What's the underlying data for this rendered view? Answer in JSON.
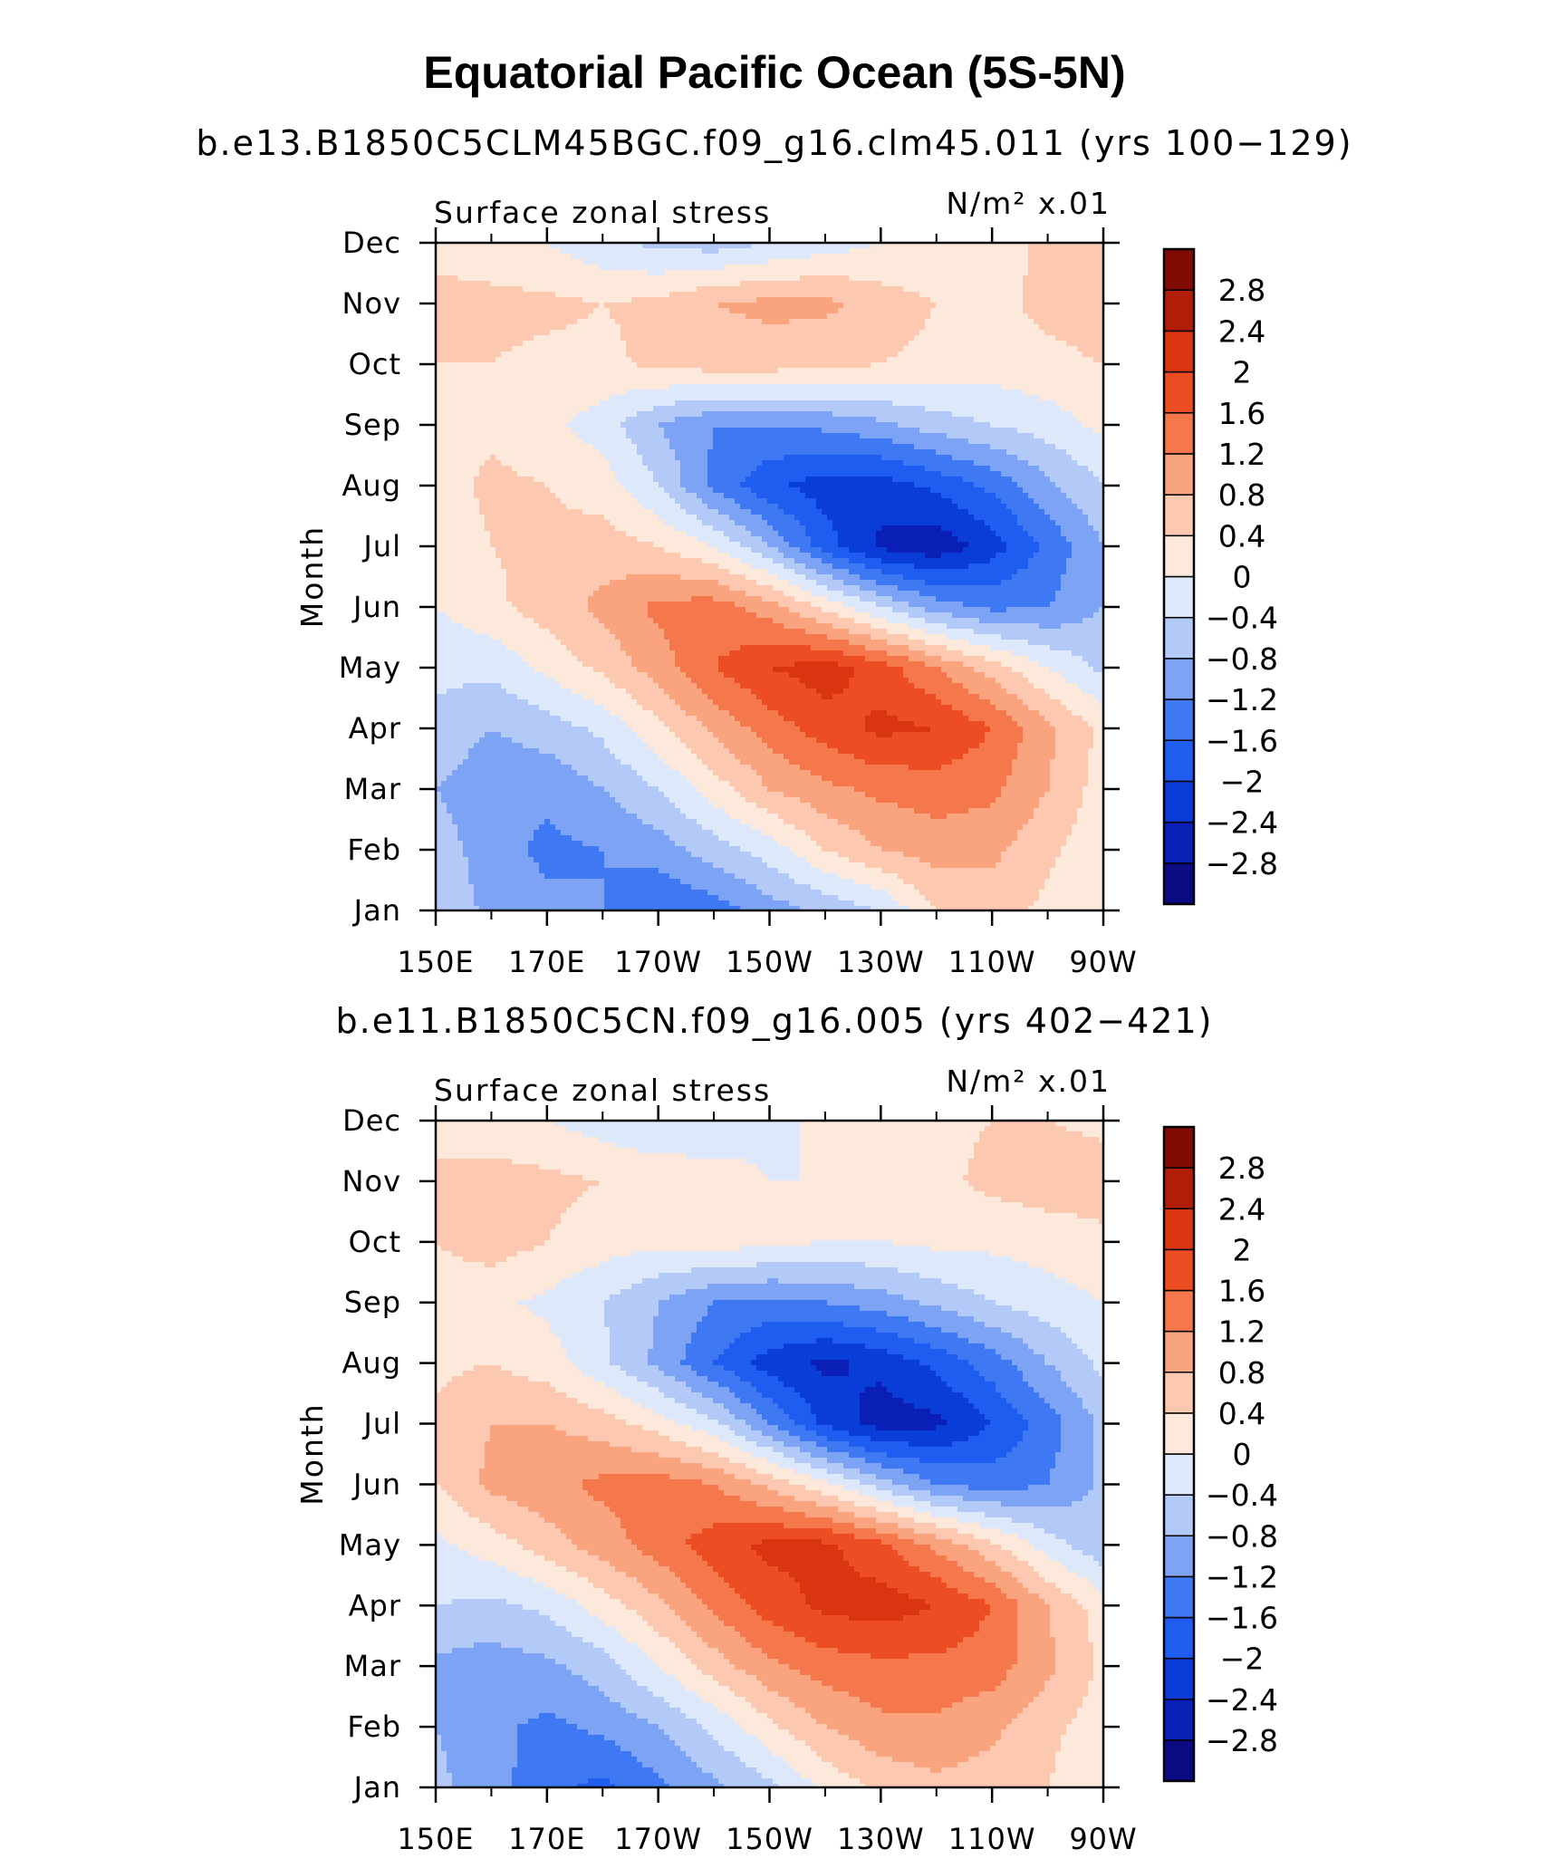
{
  "figure": {
    "title": "Equatorial Pacific Ocean (5S-5N)"
  },
  "palette": {
    "levels": [
      -2.8,
      -2.4,
      -2,
      -1.6,
      -1.2,
      -0.8,
      -0.4,
      0,
      0.4,
      0.8,
      1.2,
      1.6,
      2,
      2.4,
      2.8
    ],
    "level_labels": [
      "-2.8",
      "-2.4",
      "-2",
      "-1.6",
      "-1.2",
      "-0.8",
      "-0.4",
      "0",
      "0.4",
      "0.8",
      "1.2",
      "1.6",
      "2",
      "2.4",
      "2.8"
    ],
    "colors": [
      "#0b0b84",
      "#0a1fb6",
      "#0a3cd8",
      "#1f5cf0",
      "#3f78f3",
      "#7da3f5",
      "#b3c9f8",
      "#dde9fb",
      "#fde9dc",
      "#fcc9b0",
      "#f9a47f",
      "#f4784b",
      "#ec4d22",
      "#d83510",
      "#b01e08",
      "#800b05"
    ]
  },
  "chart_data": [
    {
      "type": "heatmap",
      "title": "b.e13.B1850C5CLM45BGC.f09_g16.clm45.011 (yrs 100−129)",
      "variable_label": "Surface zonal stress",
      "units_label": "N/m² x.01",
      "xlabel": "",
      "ylabel": "Month",
      "x_ticks": [
        "150E",
        "170E",
        "170W",
        "150W",
        "130W",
        "110W",
        "90W"
      ],
      "x_range_deg_east": [
        150,
        270
      ],
      "y_ticks": [
        "Jan",
        "Feb",
        "Mar",
        "Apr",
        "May",
        "Jun",
        "Jul",
        "Aug",
        "Sep",
        "Oct",
        "Nov",
        "Dec"
      ],
      "x_deg_east": [
        150,
        160,
        170,
        180,
        190,
        200,
        210,
        220,
        230,
        240,
        250,
        260,
        270
      ],
      "values_by_month": [
        [
          -0.5,
          -0.9,
          -1.1,
          -1.2,
          -1.6,
          -1.4,
          -1.0,
          -0.7,
          -0.4,
          0.4,
          0.6,
          0.3,
          0.0
        ],
        [
          -0.6,
          -1.0,
          -1.3,
          -1.2,
          -1.0,
          -0.6,
          -0.2,
          0.4,
          0.8,
          1.0,
          0.9,
          0.5,
          0.1
        ],
        [
          -0.8,
          -1.1,
          -1.1,
          -0.8,
          -0.4,
          0.2,
          0.8,
          1.1,
          1.3,
          1.4,
          1.3,
          0.8,
          0.2
        ],
        [
          -0.5,
          -0.8,
          -0.6,
          -0.3,
          0.3,
          0.9,
          1.4,
          1.8,
          2.1,
          2.0,
          1.6,
          0.9,
          0.3
        ],
        [
          -0.3,
          -0.3,
          0.1,
          0.5,
          1.0,
          1.6,
          2.0,
          2.2,
          1.8,
          1.2,
          0.6,
          0.0,
          -0.5
        ],
        [
          0.0,
          0.3,
          0.6,
          0.9,
          1.3,
          1.4,
          1.0,
          0.3,
          -0.4,
          -1.0,
          -1.3,
          -1.2,
          -0.8
        ],
        [
          0.1,
          0.4,
          0.5,
          0.6,
          0.4,
          0.0,
          -0.8,
          -1.8,
          -2.5,
          -2.7,
          -2.2,
          -1.5,
          -0.8
        ],
        [
          0.2,
          0.5,
          0.4,
          0.2,
          -0.4,
          -1.3,
          -1.9,
          -2.2,
          -2.2,
          -1.9,
          -1.5,
          -0.9,
          -0.4
        ],
        [
          0.3,
          0.3,
          0.1,
          -0.2,
          -0.8,
          -1.2,
          -1.2,
          -1.1,
          -0.9,
          -0.6,
          -0.4,
          -0.2,
          0.1
        ],
        [
          0.4,
          0.4,
          0.3,
          0.3,
          0.5,
          0.6,
          0.6,
          0.5,
          0.4,
          0.3,
          0.2,
          0.3,
          0.4
        ],
        [
          0.5,
          0.5,
          0.5,
          0.4,
          0.5,
          0.8,
          0.9,
          0.9,
          0.6,
          0.4,
          0.3,
          0.5,
          0.6
        ],
        [
          0.3,
          0.2,
          0.0,
          -0.3,
          -0.5,
          -0.6,
          -0.4,
          -0.2,
          0.0,
          0.1,
          0.2,
          0.5,
          0.6
        ]
      ]
    },
    {
      "type": "heatmap",
      "title": "b.e11.B1850C5CN.f09_g16.005 (yrs 402−421)",
      "variable_label": "Surface zonal stress",
      "units_label": "N/m² x.01",
      "xlabel": "",
      "ylabel": "Month",
      "x_ticks": [
        "150E",
        "170E",
        "170W",
        "150W",
        "130W",
        "110W",
        "90W"
      ],
      "x_range_deg_east": [
        150,
        270
      ],
      "y_ticks": [
        "Jan",
        "Feb",
        "Mar",
        "Apr",
        "May",
        "Jun",
        "Jul",
        "Aug",
        "Sep",
        "Oct",
        "Nov",
        "Dec"
      ],
      "x_deg_east": [
        150,
        160,
        170,
        180,
        190,
        200,
        210,
        220,
        230,
        240,
        250,
        260,
        270
      ],
      "values_by_month": [
        [
          -0.7,
          -1.0,
          -1.5,
          -1.7,
          -1.3,
          -0.9,
          -0.5,
          0.1,
          0.5,
          0.7,
          0.6,
          0.4,
          0.1
        ],
        [
          -0.8,
          -1.1,
          -1.3,
          -1.1,
          -0.8,
          -0.3,
          0.3,
          0.8,
          1.1,
          1.1,
          0.9,
          0.5,
          0.2
        ],
        [
          -0.9,
          -1.0,
          -0.9,
          -0.6,
          0.0,
          0.6,
          1.1,
          1.4,
          1.5,
          1.5,
          1.4,
          0.9,
          0.3
        ],
        [
          -0.4,
          -0.5,
          -0.3,
          0.2,
          0.7,
          1.3,
          1.8,
          2.1,
          2.2,
          2.0,
          1.6,
          0.8,
          0.2
        ],
        [
          -0.1,
          0.2,
          0.6,
          1.0,
          1.4,
          1.8,
          2.1,
          2.1,
          1.7,
          1.1,
          0.5,
          -0.2,
          -0.7
        ],
        [
          0.4,
          0.9,
          1.1,
          1.3,
          1.4,
          1.2,
          0.7,
          0.1,
          -0.6,
          -1.2,
          -1.4,
          -1.2,
          -0.7
        ],
        [
          0.5,
          0.8,
          0.8,
          0.6,
          0.2,
          -0.3,
          -1.2,
          -2.1,
          -2.6,
          -2.5,
          -2.0,
          -1.4,
          -0.7
        ],
        [
          0.3,
          0.4,
          0.2,
          -0.3,
          -0.9,
          -1.6,
          -2.2,
          -2.5,
          -2.3,
          -1.9,
          -1.4,
          -0.8,
          -0.3
        ],
        [
          0.2,
          0.1,
          -0.1,
          -0.4,
          -0.8,
          -1.2,
          -1.3,
          -1.2,
          -1.0,
          -0.7,
          -0.4,
          -0.2,
          0.0
        ],
        [
          0.4,
          0.6,
          0.4,
          0.2,
          0.1,
          0.2,
          0.1,
          0.0,
          0.0,
          0.1,
          0.1,
          0.2,
          0.3
        ],
        [
          0.5,
          0.6,
          0.5,
          0.4,
          0.3,
          0.2,
          0.0,
          0.0,
          0.1,
          0.3,
          0.5,
          0.6,
          0.6
        ],
        [
          0.2,
          0.1,
          0.0,
          -0.2,
          -0.4,
          -0.3,
          -0.1,
          0.1,
          0.2,
          0.3,
          0.4,
          0.4,
          0.3
        ]
      ]
    }
  ]
}
